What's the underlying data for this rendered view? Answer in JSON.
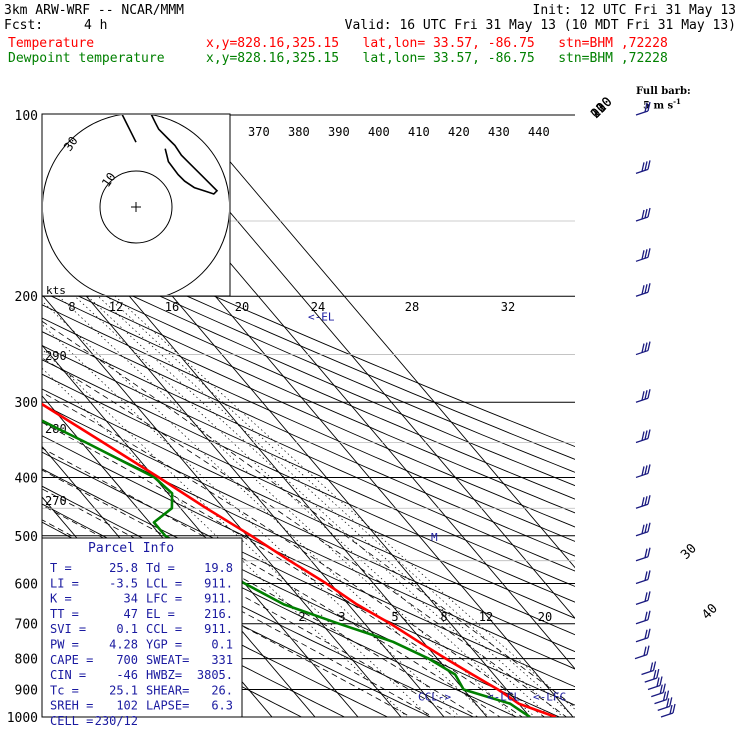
{
  "header": {
    "model": "3km ARW-WRF -- NCAR/MMM",
    "init": "Init: 12 UTC Fri 31 May 13",
    "fcst_label": "Fcst:",
    "fcst_value": "4 h",
    "valid": "Valid: 16 UTC Fri 31 May 13 (10 MDT Fri 31 May 13)",
    "temp_label": "Temperature",
    "temp_info": "x,y=828.16,325.15   lat,lon= 33.57, -86.75   stn=BHM ,72228",
    "dew_label": "Dewpoint temperature",
    "dew_info": "x,y=828.16,325.15   lat,lon= 33.57, -86.75   stn=BHM ,72228",
    "barb_note_1": "Full barb:",
    "barb_note_2": "5 m s",
    "barb_note_sup": "-1"
  },
  "colors": {
    "temperature": "#ff0000",
    "dewpoint": "#008000",
    "wind_barbs": "#1a1a80",
    "parcel_info": "#1a1aa0",
    "text": "#000000"
  },
  "chart_data": {
    "type": "skew-t log-p",
    "pressure_levels": [
      100,
      200,
      300,
      400,
      500,
      600,
      700,
      800,
      900,
      1000
    ],
    "isotherm_labels": [
      -80,
      -70,
      -60,
      -50,
      -40,
      -30,
      -20,
      -10,
      0,
      10,
      20,
      30,
      40
    ],
    "theta_e_labels": [
      370,
      380,
      390,
      400,
      410,
      420,
      430,
      440
    ],
    "theta_labels": [
      290,
      280,
      270
    ],
    "mixing_ratio_labels_upper": [
      8,
      12,
      16,
      20,
      24,
      28,
      32
    ],
    "mixing_ratio_labels_lower": [
      2,
      3,
      5,
      8,
      12,
      20
    ],
    "temperature_profile": [
      {
        "p": 1000,
        "t": 26
      },
      {
        "p": 975,
        "t": 23
      },
      {
        "p": 950,
        "t": 20
      },
      {
        "p": 925,
        "t": 19
      },
      {
        "p": 900,
        "t": 18
      },
      {
        "p": 850,
        "t": 15
      },
      {
        "p": 800,
        "t": 12
      },
      {
        "p": 750,
        "t": 9
      },
      {
        "p": 700,
        "t": 6
      },
      {
        "p": 650,
        "t": 2
      },
      {
        "p": 600,
        "t": -1
      },
      {
        "p": 550,
        "t": -5
      },
      {
        "p": 500,
        "t": -9
      },
      {
        "p": 450,
        "t": -14
      },
      {
        "p": 400,
        "t": -19
      },
      {
        "p": 350,
        "t": -25
      },
      {
        "p": 300,
        "t": -32
      },
      {
        "p": 250,
        "t": -41
      },
      {
        "p": 200,
        "t": -52
      },
      {
        "p": 175,
        "t": -58
      },
      {
        "p": 150,
        "t": -62
      },
      {
        "p": 125,
        "t": -64
      },
      {
        "p": 110,
        "t": -64
      },
      {
        "p": 100,
        "t": -64
      }
    ],
    "dewpoint_profile": [
      {
        "p": 1000,
        "t": 20
      },
      {
        "p": 975,
        "t": 19
      },
      {
        "p": 950,
        "t": 18
      },
      {
        "p": 925,
        "t": 14
      },
      {
        "p": 900,
        "t": 10
      },
      {
        "p": 850,
        "t": 11
      },
      {
        "p": 800,
        "t": 8
      },
      {
        "p": 750,
        "t": 3
      },
      {
        "p": 700,
        "t": -6
      },
      {
        "p": 650,
        "t": -15
      },
      {
        "p": 600,
        "t": -20
      },
      {
        "p": 550,
        "t": -25
      },
      {
        "p": 500,
        "t": -29
      },
      {
        "p": 475,
        "t": -29
      },
      {
        "p": 450,
        "t": -22
      },
      {
        "p": 425,
        "t": -19
      },
      {
        "p": 400,
        "t": -20
      },
      {
        "p": 350,
        "t": -29
      },
      {
        "p": 300,
        "t": -40
      },
      {
        "p": 250,
        "t": -52
      },
      {
        "p": 200,
        "t": -67
      },
      {
        "p": 175,
        "t": -73
      },
      {
        "p": 150,
        "t": -80
      },
      {
        "p": 125,
        "t": -84
      },
      {
        "p": 100,
        "t": -85
      }
    ],
    "level_markers": [
      {
        "label": "<-EL",
        "p": 216
      },
      {
        "label": "CCL->",
        "p": 911
      },
      {
        "label": "<-LCL",
        "p": 911
      },
      {
        "label": "<-LFC",
        "p": 911
      }
    ],
    "hodograph": {
      "units_label": "kts",
      "ring_labels": [
        "10",
        "30"
      ],
      "points": [
        [
          0,
          20
        ],
        [
          -2,
          24
        ],
        [
          -5,
          30
        ],
        [
          -6,
          34
        ],
        [
          -4,
          35
        ],
        [
          -1,
          36
        ],
        [
          1,
          38
        ],
        [
          3,
          34
        ],
        [
          4,
          30
        ],
        [
          6,
          26
        ],
        [
          7,
          24
        ],
        [
          10,
          21
        ],
        [
          12,
          19
        ],
        [
          14,
          16
        ],
        [
          17,
          13
        ],
        [
          20,
          10
        ],
        [
          22,
          8
        ],
        [
          25,
          5
        ],
        [
          24,
          4
        ],
        [
          21,
          5
        ],
        [
          18,
          6
        ],
        [
          15,
          8
        ],
        [
          13,
          10
        ],
        [
          10,
          14
        ],
        [
          9,
          18
        ]
      ]
    }
  },
  "parcel_info": {
    "title": "Parcel Info",
    "rows": [
      [
        "T  =",
        "25.8",
        "Td =",
        "19.8"
      ],
      [
        "LI =",
        "-3.5",
        "LCL =",
        "911."
      ],
      [
        "K  =",
        "34",
        "LFC =",
        "911."
      ],
      [
        "TT =",
        "47",
        "EL  =",
        "216."
      ],
      [
        "SVI =",
        "0.1",
        "CCL =",
        "911."
      ],
      [
        "PW =",
        "4.28",
        "YGP =",
        "0.1"
      ],
      [
        "CAPE =",
        "700",
        "SWEAT=",
        "331"
      ],
      [
        "CIN =",
        "-46",
        "HWBZ=",
        "3805."
      ],
      [
        "Tc =",
        "25.1",
        "SHEAR=",
        "26."
      ],
      [
        "SREH =",
        "102",
        "LAPSE=",
        "6.3"
      ],
      [
        "CELL =",
        "230/12",
        "",
        ""
      ]
    ]
  },
  "wind_profile": [
    {
      "p": 1000,
      "dir": 160,
      "spd": 10
    },
    {
      "p": 975,
      "dir": 170,
      "spd": 10
    },
    {
      "p": 950,
      "dir": 180,
      "spd": 10
    },
    {
      "p": 925,
      "dir": 190,
      "spd": 10
    },
    {
      "p": 900,
      "dir": 200,
      "spd": 10
    },
    {
      "p": 875,
      "dir": 210,
      "spd": 10
    },
    {
      "p": 850,
      "dir": 220,
      "spd": 10
    },
    {
      "p": 800,
      "dir": 230,
      "spd": 10
    },
    {
      "p": 750,
      "dir": 230,
      "spd": 10
    },
    {
      "p": 700,
      "dir": 240,
      "spd": 10
    },
    {
      "p": 650,
      "dir": 240,
      "spd": 10
    },
    {
      "p": 600,
      "dir": 250,
      "spd": 10
    },
    {
      "p": 550,
      "dir": 250,
      "spd": 10
    },
    {
      "p": 500,
      "dir": 250,
      "spd": 15
    },
    {
      "p": 450,
      "dir": 250,
      "spd": 15
    },
    {
      "p": 400,
      "dir": 255,
      "spd": 15
    },
    {
      "p": 350,
      "dir": 255,
      "spd": 15
    },
    {
      "p": 300,
      "dir": 255,
      "spd": 15
    },
    {
      "p": 250,
      "dir": 260,
      "spd": 15
    },
    {
      "p": 200,
      "dir": 260,
      "spd": 15
    },
    {
      "p": 175,
      "dir": 260,
      "spd": 15
    },
    {
      "p": 150,
      "dir": 265,
      "spd": 15
    },
    {
      "p": 125,
      "dir": 265,
      "spd": 15
    },
    {
      "p": 100,
      "dir": 270,
      "spd": 10
    }
  ]
}
